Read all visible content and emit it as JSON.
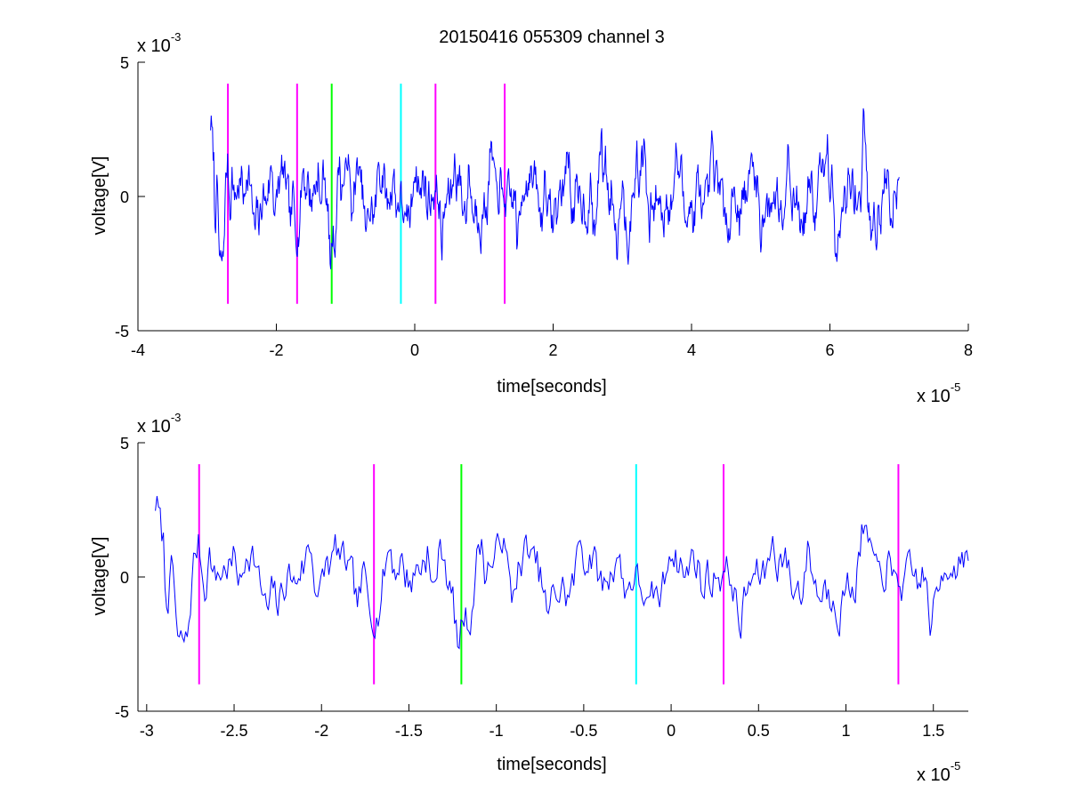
{
  "chart_data": [
    {
      "type": "line",
      "title": "20150416 055309 channel 3",
      "xlabel": "time[seconds]",
      "ylabel": "voltage[V]",
      "x_multiplier": {
        "base": "x 10",
        "exponent": "-5"
      },
      "y_multiplier": {
        "base": "x 10",
        "exponent": "-3"
      },
      "xlim": [
        -4e-05,
        8e-05
      ],
      "ylim": [
        -0.005,
        0.005
      ],
      "x_ticks": [
        -4e-05,
        -2e-05,
        0,
        2e-05,
        4e-05,
        6e-05,
        8e-05
      ],
      "x_tick_labels": [
        "-4",
        "-2",
        "0",
        "2",
        "4",
        "6",
        "8"
      ],
      "y_ticks": [
        -0.005,
        0,
        0.005
      ],
      "y_tick_labels": [
        "-5",
        "0",
        "5"
      ],
      "grid": false,
      "signal": {
        "color": "#0000ff",
        "x_start": -2.95e-05,
        "x_end": 7e-05,
        "seed": 7
      },
      "markers": [
        {
          "x": -2.7e-05,
          "color": "#ff00ff",
          "y_range": [
            -0.004,
            0.0042
          ]
        },
        {
          "x": -1.7e-05,
          "color": "#ff00ff",
          "y_range": [
            -0.004,
            0.0042
          ]
        },
        {
          "x": -1.2e-05,
          "color": "#00ff00",
          "y_range": [
            -0.004,
            0.0042
          ]
        },
        {
          "x": -2e-06,
          "color": "#00ffff",
          "y_range": [
            -0.004,
            0.0042
          ]
        },
        {
          "x": 3e-06,
          "color": "#ff00ff",
          "y_range": [
            -0.004,
            0.0042
          ]
        },
        {
          "x": 1.3e-05,
          "color": "#ff00ff",
          "y_range": [
            -0.004,
            0.0042
          ]
        }
      ]
    },
    {
      "type": "line",
      "xlabel": "time[seconds]",
      "ylabel": "voltage[V]",
      "x_multiplier": {
        "base": "x 10",
        "exponent": "-5"
      },
      "y_multiplier": {
        "base": "x 10",
        "exponent": "-3"
      },
      "xlim": [
        -3.05e-05,
        1.7e-05
      ],
      "ylim": [
        -0.005,
        0.005
      ],
      "x_ticks": [
        -3e-05,
        -2.5e-05,
        -2e-05,
        -1.5e-05,
        -1e-05,
        -5e-06,
        0,
        5e-06,
        1e-05,
        1.5e-05
      ],
      "x_tick_labels": [
        "-3",
        "-2.5",
        "-2",
        "-1.5",
        "-1",
        "-0.5",
        "0",
        "0.5",
        "1",
        "1.5"
      ],
      "y_ticks": [
        -0.005,
        0,
        0.005
      ],
      "y_tick_labels": [
        "-5",
        "0",
        "5"
      ],
      "grid": false,
      "signal": {
        "color": "#0000ff",
        "x_start": -2.95e-05,
        "x_end": 1.7e-05,
        "seed": 7
      },
      "markers": [
        {
          "x": -2.7e-05,
          "color": "#ff00ff",
          "y_range": [
            -0.004,
            0.0042
          ]
        },
        {
          "x": -1.7e-05,
          "color": "#ff00ff",
          "y_range": [
            -0.004,
            0.0042
          ]
        },
        {
          "x": -1.2e-05,
          "color": "#00ff00",
          "y_range": [
            -0.004,
            0.0042
          ]
        },
        {
          "x": -2e-06,
          "color": "#00ffff",
          "y_range": [
            -0.004,
            0.0042
          ]
        },
        {
          "x": 3e-06,
          "color": "#ff00ff",
          "y_range": [
            -0.004,
            0.0042
          ]
        },
        {
          "x": 1.3e-05,
          "color": "#ff00ff",
          "y_range": [
            -0.004,
            0.0042
          ]
        }
      ]
    }
  ]
}
